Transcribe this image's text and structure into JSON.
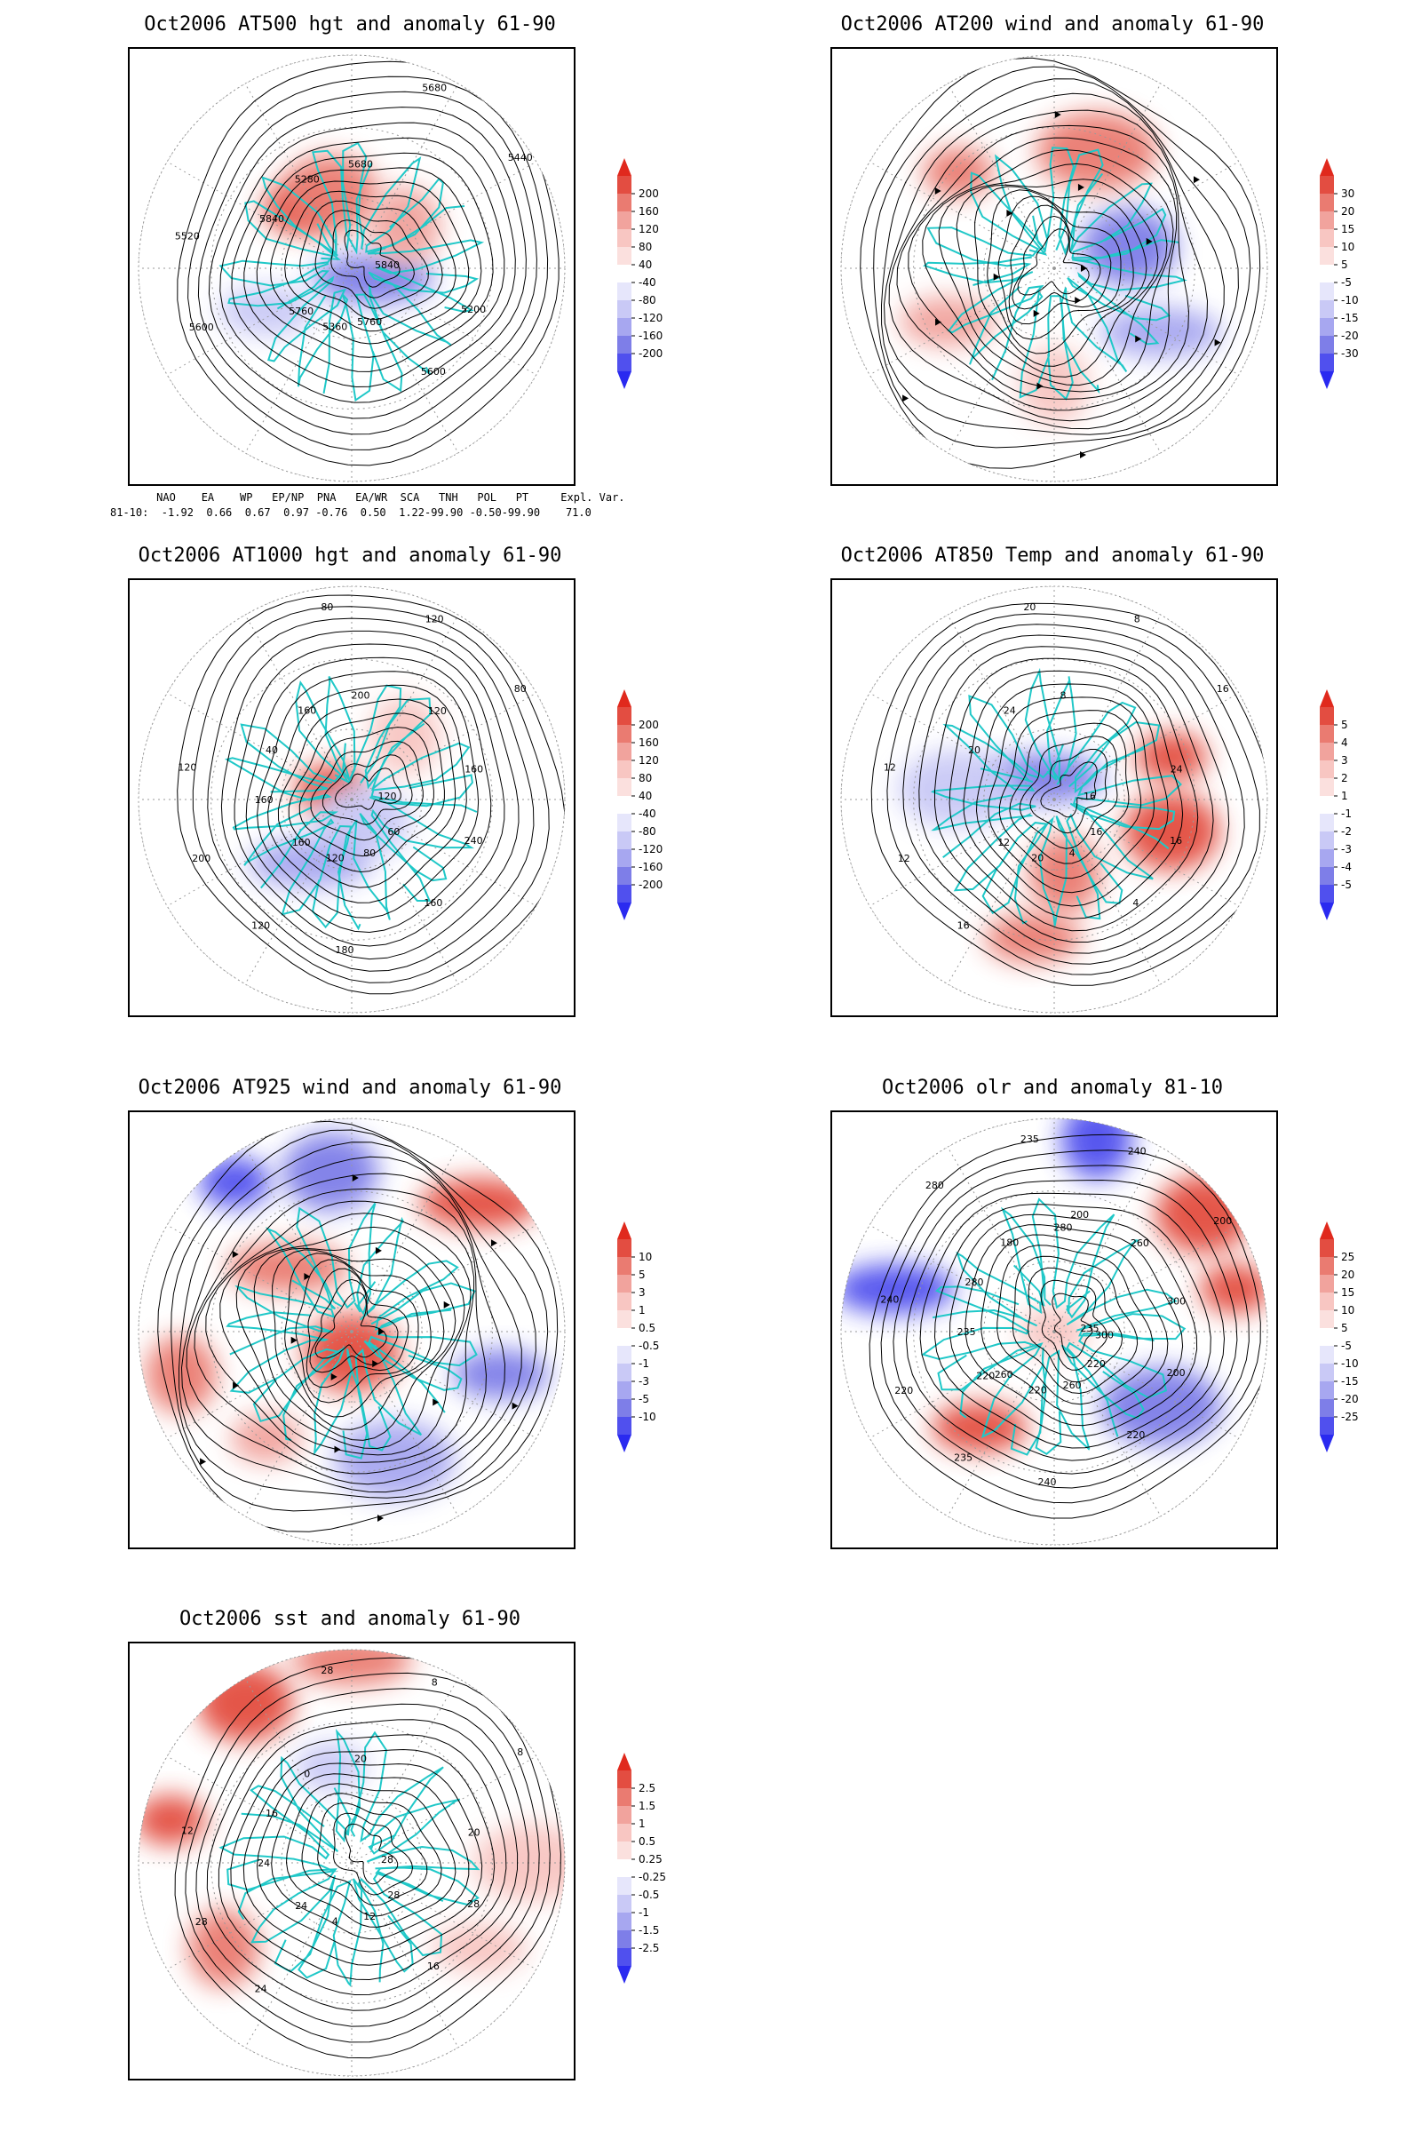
{
  "palette": {
    "red": [
      "#ffffff",
      "#fbe0de",
      "#f8c6c2",
      "#f1a39d",
      "#ea7b71",
      "#e34d41",
      "#e0291d"
    ],
    "blue": [
      "#ffffff",
      "#e6e6fb",
      "#c9c9f6",
      "#a7a7f0",
      "#7e7ee8",
      "#5050ee",
      "#2a2af0"
    ],
    "coast": "#20c8c8",
    "contour": "#000000"
  },
  "panels": [
    {
      "title": "Oct2006 AT500 hgt and anomaly 61-90",
      "type": "heatmap",
      "legend_ticks": [
        "200",
        "160",
        "120",
        "80",
        "40",
        "-40",
        "-80",
        "-120",
        "-160",
        "-200"
      ],
      "contour_labels": [
        "5840",
        "5760",
        "5680",
        "5600",
        "5520",
        "5440",
        "5360",
        "5280",
        "5200",
        "5600",
        "5680",
        "5760",
        "5840"
      ],
      "anomalies": [
        [
          -0.25,
          -0.28,
          0.9
        ],
        [
          -0.1,
          -0.35,
          0.7
        ],
        [
          0.1,
          0.05,
          -0.6
        ],
        [
          0.25,
          -0.2,
          0.5
        ],
        [
          -0.4,
          0.2,
          -0.3
        ]
      ]
    },
    {
      "title": "Oct2006 AT200 wind and anomaly 61-90",
      "type": "vector",
      "legend_ticks": [
        "30",
        "20",
        "15",
        "10",
        "5",
        "-5",
        "-10",
        "-15",
        "-20",
        "-30"
      ],
      "contour_labels": [],
      "anomalies": [
        [
          -0.45,
          -0.45,
          0.7
        ],
        [
          0.35,
          -0.1,
          -0.6
        ],
        [
          0.5,
          0.3,
          -0.5
        ],
        [
          0.0,
          0.55,
          0.4
        ],
        [
          -0.5,
          0.25,
          0.5
        ],
        [
          0.2,
          -0.55,
          0.6
        ]
      ]
    },
    {
      "title": "Oct2006 AT1000 hgt and anomaly 61-90",
      "type": "heatmap",
      "legend_ticks": [
        "200",
        "160",
        "120",
        "80",
        "40",
        "-40",
        "-80",
        "-120",
        "-160",
        "-200"
      ],
      "contour_labels": [
        "120",
        "160",
        "200",
        "160",
        "120",
        "80",
        "120",
        "160",
        "240",
        "200",
        "120",
        "80",
        "40",
        "160",
        "120",
        "80",
        "60",
        "160",
        "120",
        "180"
      ],
      "anomalies": [
        [
          -0.1,
          -0.05,
          0.8
        ],
        [
          0.05,
          0.1,
          -0.4
        ],
        [
          -0.2,
          0.3,
          -0.5
        ],
        [
          0.25,
          -0.3,
          0.3
        ]
      ]
    },
    {
      "title": "Oct2006 AT850 Temp and anomaly 61-90",
      "type": "heatmap",
      "legend_ticks": [
        "5",
        "4",
        "3",
        "2",
        "1",
        "-1",
        "-2",
        "-3",
        "-4",
        "-5"
      ],
      "contour_labels": [
        "16",
        "12",
        "8",
        "4",
        "12",
        "16",
        "20",
        "24",
        "16",
        "12",
        "8",
        "4",
        "20",
        "24",
        "16",
        "20",
        "16"
      ],
      "anomalies": [
        [
          0.55,
          -0.2,
          0.9
        ],
        [
          0.55,
          0.15,
          0.8
        ],
        [
          -0.05,
          -0.1,
          -0.7
        ],
        [
          0.05,
          0.35,
          0.7
        ],
        [
          -0.1,
          0.65,
          0.6
        ],
        [
          -0.45,
          -0.05,
          -0.4
        ]
      ]
    },
    {
      "title": "Oct2006 AT925 wind and anomaly 61-90",
      "type": "vector",
      "legend_ticks": [
        "10",
        "5",
        "3",
        "1",
        "0.5",
        "-0.5",
        "-1",
        "-3",
        "-5",
        "-10"
      ],
      "contour_labels": [],
      "anomalies": [
        [
          -0.55,
          -0.7,
          -0.8
        ],
        [
          -0.1,
          -0.75,
          -0.7
        ],
        [
          0.6,
          -0.6,
          0.9
        ],
        [
          -0.8,
          0.2,
          0.7
        ],
        [
          0.7,
          0.2,
          -0.6
        ],
        [
          0.2,
          0.6,
          -0.5
        ],
        [
          -0.4,
          0.5,
          0.5
        ],
        [
          0.0,
          0.1,
          0.8
        ],
        [
          -0.3,
          -0.3,
          0.6
        ]
      ]
    },
    {
      "title": "Oct2006 olr and anomaly 81-10",
      "type": "heatmap",
      "legend_ticks": [
        "25",
        "20",
        "15",
        "10",
        "5",
        "-5",
        "-10",
        "-15",
        "-20",
        "-25"
      ],
      "contour_labels": [
        "235",
        "260",
        "280",
        "220",
        "240",
        "200",
        "220",
        "180",
        "200",
        "220",
        "240",
        "260",
        "280",
        "300",
        "235",
        "235",
        "220",
        "235",
        "260",
        "240",
        "280",
        "300",
        "220",
        "200"
      ],
      "anomalies": [
        [
          0.85,
          -0.2,
          0.9
        ],
        [
          0.7,
          -0.55,
          0.8
        ],
        [
          -0.75,
          -0.2,
          -0.9
        ],
        [
          0.2,
          -0.9,
          -0.8
        ],
        [
          -0.35,
          0.45,
          0.8
        ],
        [
          0.5,
          0.35,
          -0.7
        ],
        [
          0.0,
          0.0,
          0.3
        ]
      ]
    },
    {
      "title": "Oct2006 sst and anomaly 61-90",
      "type": "heatmap",
      "legend_ticks": [
        "2.5",
        "1.5",
        "1",
        "0.5",
        "0.25",
        "-0.25",
        "-0.5",
        "-1",
        "-1.5",
        "-2.5"
      ],
      "contour_labels": [
        "28",
        "24",
        "20",
        "16",
        "12",
        "8",
        "4",
        "0",
        "28",
        "28",
        "8",
        "12",
        "16",
        "20",
        "24",
        "28",
        "28",
        "24"
      ],
      "anomalies": [
        [
          -0.85,
          -0.2,
          0.9
        ],
        [
          -0.5,
          -0.75,
          0.8
        ],
        [
          0.0,
          -0.95,
          0.7
        ],
        [
          -0.6,
          0.4,
          0.7
        ],
        [
          0.6,
          0.4,
          0.3
        ],
        [
          0.85,
          0.0,
          0.4
        ],
        [
          -0.1,
          -0.45,
          -0.4
        ]
      ]
    }
  ],
  "teleconnection": {
    "header": "     NAO    EA    WP   EP/NP  PNA   EA/WR  SCA   TNH   POL   PT     Expl. Var.",
    "values": "81-10:  -1.92  0.66  0.67  0.97 -0.76  0.50  1.22-99.90 -0.50-99.90    71.0"
  },
  "chart_data": [
    {
      "type": "heatmap",
      "title": "Oct2006 AT500 hgt and anomaly 61-90",
      "legend_levels": [
        200,
        160,
        120,
        80,
        40,
        -40,
        -80,
        -120,
        -160,
        -200
      ],
      "contour_values": [
        5840,
        5760,
        5680,
        5600,
        5520,
        5440,
        5360,
        5280,
        5200
      ],
      "teleconnection_indices": {
        "NAO": -1.92,
        "EA": 0.66,
        "WP": 0.67,
        "EP/NP": 0.97,
        "PNA": -0.76,
        "EA/WR": 0.5,
        "SCA": 1.22,
        "TNH": -99.9,
        "POL": -0.5,
        "PT": -99.9,
        "Expl. Var.": 71.0
      }
    },
    {
      "type": "heatmap",
      "title": "Oct2006 AT200 wind and anomaly 61-90",
      "legend_levels": [
        30,
        20,
        15,
        10,
        5,
        -5,
        -10,
        -15,
        -20,
        -30
      ]
    },
    {
      "type": "heatmap",
      "title": "Oct2006 AT1000 hgt and anomaly 61-90",
      "legend_levels": [
        200,
        160,
        120,
        80,
        40,
        -40,
        -80,
        -120,
        -160,
        -200
      ]
    },
    {
      "type": "heatmap",
      "title": "Oct2006 AT850 Temp and anomaly 61-90",
      "legend_levels": [
        5,
        4,
        3,
        2,
        1,
        -1,
        -2,
        -3,
        -4,
        -5
      ]
    },
    {
      "type": "heatmap",
      "title": "Oct2006 AT925 wind and anomaly 61-90",
      "legend_levels": [
        10,
        5,
        3,
        1,
        0.5,
        -0.5,
        -1,
        -3,
        -5,
        -10
      ]
    },
    {
      "type": "heatmap",
      "title": "Oct2006 olr and anomaly 81-10",
      "legend_levels": [
        25,
        20,
        15,
        10,
        5,
        -5,
        -10,
        -15,
        -20,
        -25
      ]
    },
    {
      "type": "heatmap",
      "title": "Oct2006 sst and anomaly 61-90",
      "legend_levels": [
        2.5,
        1.5,
        1,
        0.5,
        0.25,
        -0.25,
        -0.5,
        -1,
        -1.5,
        -2.5
      ]
    }
  ]
}
